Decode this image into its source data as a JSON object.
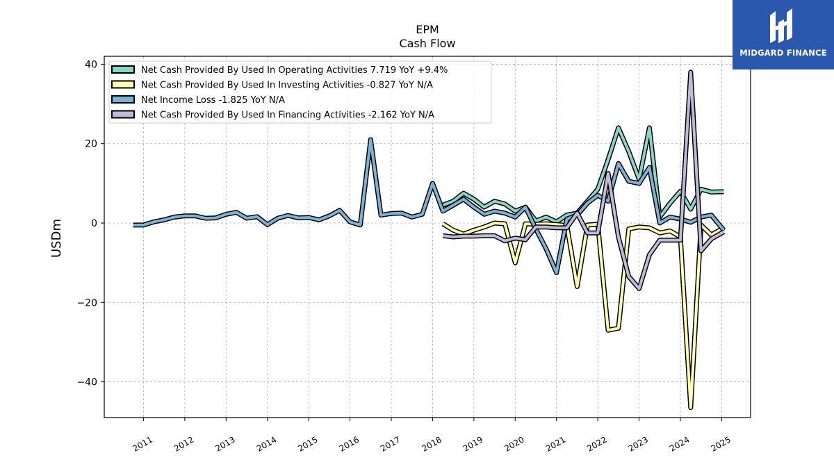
{
  "brand": {
    "name": "MIDGARD FINANCE",
    "background": "#2b57ad"
  },
  "chart_data": {
    "type": "line",
    "title": "EPM",
    "subtitle": "Cash Flow",
    "xlabel": "",
    "ylabel": "USDm",
    "ylim": [
      -49,
      42
    ],
    "xlim": [
      2010.05,
      2025.7
    ],
    "yticks": [
      40,
      20,
      0,
      -20,
      -40
    ],
    "yticklabels": [
      "40",
      "20",
      "0",
      "−20",
      "−40"
    ],
    "xticks": [
      2011,
      2012,
      2013,
      2014,
      2015,
      2016,
      2017,
      2018,
      2019,
      2020,
      2021,
      2022,
      2023,
      2024,
      2025
    ],
    "xticklabels": [
      "2011",
      "2012",
      "2013",
      "2014",
      "2015",
      "2016",
      "2017",
      "2018",
      "2019",
      "2020",
      "2021",
      "2022",
      "2023",
      "2024",
      "2025"
    ],
    "grid": true,
    "legend_position": "top-left",
    "series": [
      {
        "name": "Net Cash Provided By Used In Operating Activities",
        "legend": "Net Cash Provided By Used In Operating Activities  7.719 YoY +9.4%",
        "color": "#8dd3c7",
        "points": [
          [
            2018.25,
            4.5
          ],
          [
            2018.5,
            5.5
          ],
          [
            2018.75,
            7.5
          ],
          [
            2019.0,
            6.0
          ],
          [
            2019.25,
            4.0
          ],
          [
            2019.5,
            5.5
          ],
          [
            2019.75,
            4.8
          ],
          [
            2020.0,
            3.0
          ],
          [
            2020.25,
            4.0
          ],
          [
            2020.5,
            0.5
          ],
          [
            2020.75,
            1.5
          ],
          [
            2021.0,
            0.3
          ],
          [
            2021.25,
            2.0
          ],
          [
            2021.5,
            2.5
          ],
          [
            2021.75,
            5.5
          ],
          [
            2022.0,
            8.5
          ],
          [
            2022.25,
            16.0
          ],
          [
            2022.5,
            24.0
          ],
          [
            2022.75,
            18.0
          ],
          [
            2023.0,
            11.0
          ],
          [
            2023.25,
            24.0
          ],
          [
            2023.5,
            1.5
          ],
          [
            2023.75,
            5.0
          ],
          [
            2024.0,
            8.0
          ],
          [
            2024.25,
            3.5
          ],
          [
            2024.5,
            8.5
          ],
          [
            2024.75,
            7.8
          ],
          [
            2025.05,
            7.9
          ]
        ]
      },
      {
        "name": "Net Cash Provided By Used In Investing Activities",
        "legend": "Net Cash Provided By Used In Investing Activities  -0.827 YoY N/A",
        "color": "#ffffb3",
        "points": [
          [
            2018.25,
            -0.2
          ],
          [
            2018.5,
            -1.8
          ],
          [
            2018.75,
            -2.8
          ],
          [
            2019.0,
            -1.8
          ],
          [
            2019.25,
            -1.0
          ],
          [
            2019.5,
            0.0
          ],
          [
            2019.75,
            -0.2
          ],
          [
            2020.0,
            -10.0
          ],
          [
            2020.25,
            -0.2
          ],
          [
            2020.5,
            -0.3
          ],
          [
            2020.75,
            -0.2
          ],
          [
            2021.0,
            -0.4
          ],
          [
            2021.25,
            -0.6
          ],
          [
            2021.5,
            -16.0
          ],
          [
            2021.75,
            -0.5
          ],
          [
            2022.0,
            -0.3
          ],
          [
            2022.25,
            -27.0
          ],
          [
            2022.5,
            -26.5
          ],
          [
            2022.75,
            -1.5
          ],
          [
            2023.0,
            -1.0
          ],
          [
            2023.25,
            -1.2
          ],
          [
            2023.5,
            -2.5
          ],
          [
            2023.75,
            -2.0
          ],
          [
            2024.0,
            -3.5
          ],
          [
            2024.25,
            -46.5
          ],
          [
            2024.5,
            -0.5
          ],
          [
            2024.75,
            -3.0
          ],
          [
            2025.05,
            -1.2
          ]
        ]
      },
      {
        "name": "Net Income Loss",
        "legend": "Net Income Loss  -1.825 YoY N/A",
        "color": "#80b1d3",
        "points": [
          [
            2010.75,
            -0.5
          ],
          [
            2011.0,
            -0.5
          ],
          [
            2011.25,
            0.3
          ],
          [
            2011.5,
            0.8
          ],
          [
            2011.75,
            1.5
          ],
          [
            2012.0,
            1.8
          ],
          [
            2012.25,
            1.8
          ],
          [
            2012.5,
            1.2
          ],
          [
            2012.75,
            1.3
          ],
          [
            2013.0,
            2.2
          ],
          [
            2013.25,
            2.7
          ],
          [
            2013.5,
            1.2
          ],
          [
            2013.75,
            1.6
          ],
          [
            2014.0,
            -0.4
          ],
          [
            2014.25,
            1.2
          ],
          [
            2014.5,
            1.9
          ],
          [
            2014.75,
            1.3
          ],
          [
            2015.0,
            1.4
          ],
          [
            2015.25,
            0.8
          ],
          [
            2015.5,
            1.8
          ],
          [
            2015.75,
            3.2
          ],
          [
            2016.0,
            0.3
          ],
          [
            2016.25,
            -0.5
          ],
          [
            2016.5,
            21.0
          ],
          [
            2016.75,
            2.0
          ],
          [
            2017.0,
            2.4
          ],
          [
            2017.25,
            2.5
          ],
          [
            2017.5,
            1.5
          ],
          [
            2017.75,
            2.2
          ],
          [
            2018.0,
            10.0
          ],
          [
            2018.25,
            3.0
          ],
          [
            2018.5,
            4.5
          ],
          [
            2018.75,
            6.0
          ],
          [
            2019.0,
            4.0
          ],
          [
            2019.25,
            2.2
          ],
          [
            2019.5,
            3.0
          ],
          [
            2019.75,
            2.5
          ],
          [
            2020.0,
            1.5
          ],
          [
            2020.25,
            4.0
          ],
          [
            2020.5,
            -1.5
          ],
          [
            2020.75,
            -6.5
          ],
          [
            2021.0,
            -12.5
          ],
          [
            2021.25,
            1.0
          ],
          [
            2021.5,
            2.0
          ],
          [
            2021.75,
            5.0
          ],
          [
            2022.0,
            7.0
          ],
          [
            2022.25,
            5.5
          ],
          [
            2022.5,
            15.0
          ],
          [
            2022.75,
            10.5
          ],
          [
            2023.0,
            10.0
          ],
          [
            2023.25,
            14.0
          ],
          [
            2023.5,
            0.0
          ],
          [
            2023.75,
            1.5
          ],
          [
            2024.0,
            1.0
          ],
          [
            2024.25,
            0.2
          ],
          [
            2024.5,
            1.5
          ],
          [
            2024.75,
            2.0
          ],
          [
            2025.05,
            -1.8
          ]
        ]
      },
      {
        "name": "Net Cash Provided By Used In Financing Activities",
        "legend": "Net Cash Provided By Used In Financing Activities  -2.162 YoY N/A",
        "color": "#bebada",
        "points": [
          [
            2018.25,
            -3.2
          ],
          [
            2018.5,
            -3.5
          ],
          [
            2018.75,
            -3.3
          ],
          [
            2019.0,
            -3.3
          ],
          [
            2019.25,
            -3.2
          ],
          [
            2019.5,
            -3.2
          ],
          [
            2019.75,
            -4.5
          ],
          [
            2020.0,
            -3.8
          ],
          [
            2020.25,
            -4.2
          ],
          [
            2020.5,
            -1.0
          ],
          [
            2020.75,
            -1.0
          ],
          [
            2021.0,
            -1.2
          ],
          [
            2021.25,
            -1.2
          ],
          [
            2021.5,
            2.5
          ],
          [
            2021.75,
            -2.5
          ],
          [
            2022.0,
            -2.5
          ],
          [
            2022.25,
            12.5
          ],
          [
            2022.5,
            -3.5
          ],
          [
            2022.75,
            -13.5
          ],
          [
            2023.0,
            -16.5
          ],
          [
            2023.25,
            -8.0
          ],
          [
            2023.5,
            -4.3
          ],
          [
            2023.75,
            -4.3
          ],
          [
            2024.0,
            -4.3
          ],
          [
            2024.25,
            38.0
          ],
          [
            2024.5,
            -7.0
          ],
          [
            2024.75,
            -4.0
          ],
          [
            2025.05,
            -2.2
          ]
        ]
      }
    ]
  }
}
